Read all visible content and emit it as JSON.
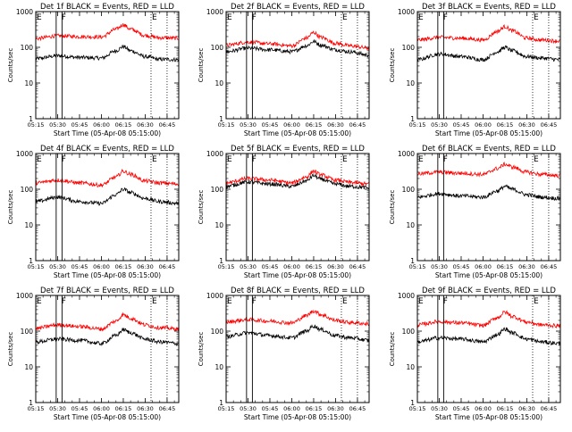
{
  "figure": {
    "xlabel": "Start Time (05-Apr-08 05:15:00)",
    "ylabel": "Counts/sec",
    "xticks": [
      "05:15",
      "05:30",
      "05:45",
      "06:00",
      "06:15",
      "06:30",
      "06:45"
    ],
    "yticks": [
      "1",
      "10",
      "100",
      "1000"
    ],
    "colors": {
      "events": "#000000",
      "lld": "#ff0000",
      "axes": "#000000"
    }
  },
  "chart_data": [
    {
      "type": "line",
      "title": "Det 1f BLACK = Events, RED = LLD",
      "xlim": [
        "05:15",
        "06:53"
      ],
      "ylim": [
        1,
        1000
      ],
      "yscale": "log",
      "x": [
        "05:15",
        "05:30",
        "05:45",
        "06:00",
        "06:10",
        "06:15",
        "06:20",
        "06:30",
        "06:40",
        "06:53"
      ],
      "series": [
        {
          "name": "Events",
          "color": "#000000",
          "values": [
            48,
            58,
            52,
            50,
            80,
            105,
            80,
            55,
            46,
            45
          ]
        },
        {
          "name": "LLD",
          "color": "#ff0000",
          "values": [
            175,
            210,
            200,
            195,
            320,
            430,
            320,
            215,
            185,
            180
          ]
        }
      ],
      "markers": [
        {
          "label": "E",
          "x": "05:15"
        },
        {
          "label": "F",
          "x": "05:32"
        },
        {
          "label": "E",
          "x": "06:34"
        }
      ],
      "vlines": [
        "05:29",
        "05:33"
      ],
      "dotted_vlines": [
        "06:34",
        "06:45"
      ]
    },
    {
      "type": "line",
      "title": "Det 2f BLACK = Events, RED = LLD",
      "xlim": [
        "05:15",
        "06:53"
      ],
      "ylim": [
        1,
        1000
      ],
      "yscale": "log",
      "x": [
        "05:15",
        "05:30",
        "05:45",
        "06:00",
        "06:10",
        "06:15",
        "06:20",
        "06:30",
        "06:40",
        "06:53"
      ],
      "series": [
        {
          "name": "Events",
          "color": "#000000",
          "values": [
            75,
            95,
            85,
            75,
            110,
            145,
            115,
            85,
            75,
            60
          ]
        },
        {
          "name": "LLD",
          "color": "#ff0000",
          "values": [
            115,
            140,
            125,
            110,
            180,
            260,
            190,
            130,
            110,
            95
          ]
        }
      ],
      "markers": [
        {
          "label": "E",
          "x": "05:15"
        },
        {
          "label": "F",
          "x": "05:32"
        },
        {
          "label": "E",
          "x": "06:34"
        }
      ],
      "vlines": [
        "05:29",
        "05:33"
      ],
      "dotted_vlines": [
        "06:34",
        "06:45"
      ]
    },
    {
      "type": "line",
      "title": "Det 3f BLACK = Events, RED = LLD",
      "xlim": [
        "05:15",
        "06:53"
      ],
      "ylim": [
        1,
        1000
      ],
      "yscale": "log",
      "x": [
        "05:15",
        "05:30",
        "05:45",
        "06:00",
        "06:10",
        "06:15",
        "06:20",
        "06:30",
        "06:40",
        "06:53"
      ],
      "series": [
        {
          "name": "Events",
          "color": "#000000",
          "values": [
            45,
            65,
            55,
            45,
            75,
            100,
            80,
            55,
            50,
            45
          ]
        },
        {
          "name": "LLD",
          "color": "#ff0000",
          "values": [
            160,
            190,
            180,
            160,
            280,
            380,
            290,
            180,
            160,
            150
          ]
        }
      ],
      "markers": [
        {
          "label": "E",
          "x": "05:15"
        },
        {
          "label": "F",
          "x": "05:32"
        },
        {
          "label": "E",
          "x": "06:34"
        }
      ],
      "vlines": [
        "05:29",
        "05:33"
      ],
      "dotted_vlines": [
        "06:34",
        "06:45"
      ]
    },
    {
      "type": "line",
      "title": "Det 4f BLACK = Events, RED = LLD",
      "xlim": [
        "05:15",
        "06:53"
      ],
      "ylim": [
        1,
        1000
      ],
      "yscale": "log",
      "x": [
        "05:15",
        "05:30",
        "05:45",
        "06:00",
        "06:10",
        "06:15",
        "06:20",
        "06:30",
        "06:40",
        "06:53"
      ],
      "series": [
        {
          "name": "Events",
          "color": "#000000",
          "values": [
            45,
            60,
            45,
            40,
            70,
            100,
            80,
            55,
            45,
            40
          ]
        },
        {
          "name": "LLD",
          "color": "#ff0000",
          "values": [
            150,
            180,
            150,
            130,
            220,
            320,
            260,
            170,
            150,
            140
          ]
        }
      ],
      "markers": [
        {
          "label": "E",
          "x": "05:15"
        },
        {
          "label": "F",
          "x": "05:32"
        },
        {
          "label": "E",
          "x": "06:34"
        }
      ],
      "vlines": [
        "05:29",
        "05:33"
      ],
      "dotted_vlines": [
        "06:34",
        "06:45"
      ]
    },
    {
      "type": "line",
      "title": "Det 5f BLACK = Events, RED = LLD",
      "xlim": [
        "05:15",
        "06:53"
      ],
      "ylim": [
        1,
        1000
      ],
      "yscale": "log",
      "x": [
        "05:15",
        "05:30",
        "05:45",
        "06:00",
        "06:10",
        "06:15",
        "06:20",
        "06:30",
        "06:40",
        "06:53"
      ],
      "series": [
        {
          "name": "Events",
          "color": "#000000",
          "values": [
            120,
            160,
            140,
            120,
            170,
            240,
            190,
            140,
            120,
            110
          ]
        },
        {
          "name": "LLD",
          "color": "#ff0000",
          "values": [
            150,
            200,
            180,
            150,
            220,
            320,
            250,
            180,
            155,
            140
          ]
        }
      ],
      "markers": [
        {
          "label": "E",
          "x": "05:15"
        },
        {
          "label": "F",
          "x": "05:32"
        },
        {
          "label": "E",
          "x": "06:34"
        }
      ],
      "vlines": [
        "05:29",
        "05:33"
      ],
      "dotted_vlines": [
        "06:34",
        "06:45"
      ]
    },
    {
      "type": "line",
      "title": "Det 6f BLACK = Events, RED = LLD",
      "xlim": [
        "05:15",
        "06:53"
      ],
      "ylim": [
        1,
        1000
      ],
      "yscale": "log",
      "x": [
        "05:15",
        "05:30",
        "05:45",
        "06:00",
        "06:10",
        "06:15",
        "06:20",
        "06:30",
        "06:40",
        "06:53"
      ],
      "series": [
        {
          "name": "Events",
          "color": "#000000",
          "values": [
            60,
            75,
            65,
            60,
            90,
            120,
            100,
            70,
            60,
            55
          ]
        },
        {
          "name": "LLD",
          "color": "#ff0000",
          "values": [
            270,
            300,
            280,
            260,
            380,
            500,
            420,
            300,
            260,
            240
          ]
        }
      ],
      "markers": [
        {
          "label": "E",
          "x": "05:15"
        },
        {
          "label": "F",
          "x": "05:32"
        },
        {
          "label": "E",
          "x": "06:34"
        }
      ],
      "vlines": [
        "05:29",
        "05:33"
      ],
      "dotted_vlines": [
        "06:34",
        "06:45"
      ]
    },
    {
      "type": "line",
      "title": "Det 7f BLACK = Events, RED = LLD",
      "xlim": [
        "05:15",
        "06:53"
      ],
      "ylim": [
        1,
        1000
      ],
      "yscale": "log",
      "x": [
        "05:15",
        "05:30",
        "05:45",
        "06:00",
        "06:10",
        "06:15",
        "06:20",
        "06:30",
        "06:40",
        "06:53"
      ],
      "series": [
        {
          "name": "Events",
          "color": "#000000",
          "values": [
            50,
            60,
            55,
            45,
            75,
            110,
            90,
            60,
            50,
            45
          ]
        },
        {
          "name": "LLD",
          "color": "#ff0000",
          "values": [
            120,
            150,
            135,
            115,
            190,
            290,
            230,
            150,
            125,
            115
          ]
        }
      ],
      "markers": [
        {
          "label": "E",
          "x": "05:15"
        },
        {
          "label": "F",
          "x": "05:32"
        },
        {
          "label": "E",
          "x": "06:34"
        }
      ],
      "vlines": [
        "05:29",
        "05:33"
      ],
      "dotted_vlines": [
        "06:34",
        "06:45"
      ]
    },
    {
      "type": "line",
      "title": "Det 8f BLACK = Events, RED = LLD",
      "xlim": [
        "05:15",
        "06:53"
      ],
      "ylim": [
        1,
        1000
      ],
      "yscale": "log",
      "x": [
        "05:15",
        "05:30",
        "05:45",
        "06:00",
        "06:10",
        "06:15",
        "06:20",
        "06:30",
        "06:40",
        "06:53"
      ],
      "series": [
        {
          "name": "Events",
          "color": "#000000",
          "values": [
            70,
            90,
            75,
            65,
            100,
            140,
            110,
            75,
            65,
            55
          ]
        },
        {
          "name": "LLD",
          "color": "#ff0000",
          "values": [
            180,
            210,
            190,
            170,
            270,
            370,
            290,
            200,
            175,
            160
          ]
        }
      ],
      "markers": [
        {
          "label": "E",
          "x": "05:15"
        },
        {
          "label": "F",
          "x": "05:32"
        },
        {
          "label": "E",
          "x": "06:34"
        }
      ],
      "vlines": [
        "05:29",
        "05:33"
      ],
      "dotted_vlines": [
        "06:34",
        "06:45"
      ]
    },
    {
      "type": "line",
      "title": "Det 9f BLACK = Events, RED = LLD",
      "xlim": [
        "05:15",
        "06:53"
      ],
      "ylim": [
        1,
        1000
      ],
      "yscale": "log",
      "x": [
        "05:15",
        "05:30",
        "05:45",
        "06:00",
        "06:10",
        "06:15",
        "06:20",
        "06:30",
        "06:40",
        "06:53"
      ],
      "series": [
        {
          "name": "Events",
          "color": "#000000",
          "values": [
            50,
            65,
            60,
            50,
            80,
            115,
            90,
            60,
            50,
            45
          ]
        },
        {
          "name": "LLD",
          "color": "#ff0000",
          "values": [
            150,
            185,
            170,
            145,
            240,
            340,
            260,
            180,
            150,
            140
          ]
        }
      ],
      "markers": [
        {
          "label": "E",
          "x": "05:15"
        },
        {
          "label": "F",
          "x": "05:32"
        },
        {
          "label": "E",
          "x": "06:34"
        }
      ],
      "vlines": [
        "05:29",
        "05:33"
      ],
      "dotted_vlines": [
        "06:34",
        "06:45"
      ]
    }
  ]
}
